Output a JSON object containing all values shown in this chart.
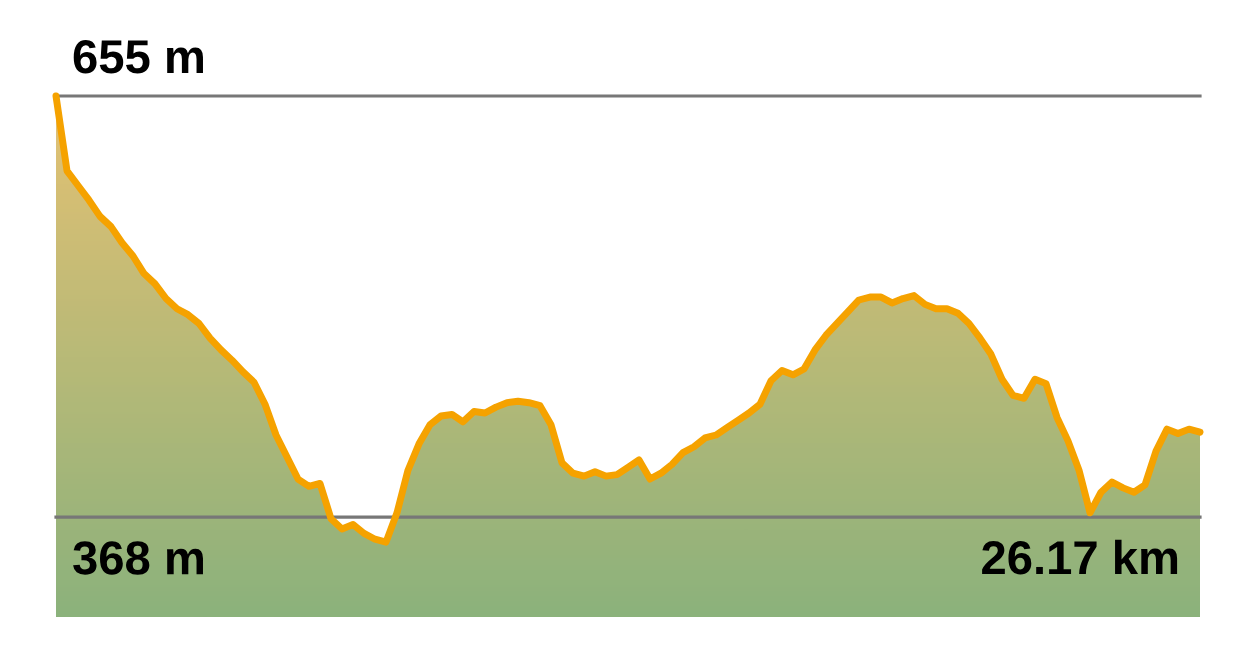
{
  "chart_data": {
    "type": "area",
    "categories": [
      null,
      null,
      null,
      null,
      null,
      null,
      null,
      null,
      null,
      null,
      null,
      null,
      null,
      null,
      null,
      null,
      null,
      null,
      null,
      null,
      null,
      null,
      null,
      null,
      null,
      null,
      null,
      null,
      null,
      null,
      null,
      null,
      null,
      null,
      null,
      null,
      null,
      null,
      null,
      null,
      null,
      null,
      null,
      null,
      null,
      null,
      null,
      null,
      null,
      null,
      null,
      null,
      null,
      null,
      null,
      null,
      null,
      null,
      null,
      null,
      null,
      null,
      null,
      null,
      null,
      null,
      null,
      null,
      null,
      null,
      null,
      null,
      null,
      null,
      null,
      null,
      null,
      null,
      null,
      null,
      null,
      null,
      null,
      null,
      null,
      null,
      null,
      null,
      null,
      null,
      null,
      null,
      null,
      null,
      null,
      null,
      null,
      null,
      null,
      null,
      null,
      null,
      null,
      null,
      null
    ],
    "ylim": [
      300,
      655
    ],
    "series": [
      {
        "color": "#f5a200",
        "values": [
          655,
          604,
          594,
          584,
          573,
          566,
          555,
          546,
          534,
          527,
          517,
          510,
          506,
          500,
          490,
          482,
          475,
          467,
          460,
          445,
          424,
          409,
          394,
          389,
          391,
          367,
          360,
          363,
          357,
          353,
          351,
          371,
          400,
          418,
          431,
          437,
          438,
          433,
          440,
          439,
          443,
          446,
          447,
          446,
          444,
          431,
          405,
          398,
          396,
          399,
          396,
          397,
          402,
          407,
          394,
          398,
          404,
          412,
          416,
          422,
          424,
          429,
          434,
          439,
          445,
          461,
          468,
          465,
          469,
          482,
          492,
          500,
          508,
          516,
          518,
          518,
          514,
          517,
          519,
          513,
          510,
          510,
          507,
          500,
          490,
          479,
          462,
          451,
          449,
          462,
          459,
          436,
          420,
          400,
          371,
          385,
          392,
          388,
          385,
          390,
          413,
          428,
          425,
          428,
          426
        ]
      }
    ],
    "ref_lines": [
      {
        "axis": "y",
        "value": 655,
        "label": "655 m",
        "color": "#777777"
      },
      {
        "axis": "y",
        "value": 368,
        "label": "368 m",
        "color": "#777777"
      }
    ],
    "annotations": [
      "26.17 km"
    ]
  }
}
